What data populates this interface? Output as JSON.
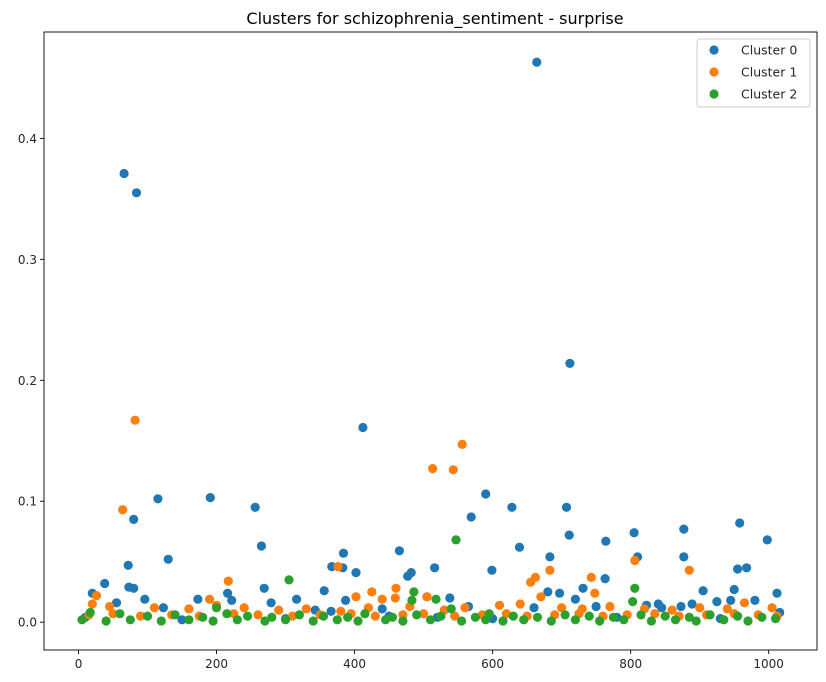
{
  "chart_data": {
    "type": "scatter",
    "title": "Clusters for schizophrenia_sentiment - surprise",
    "xlabel": "",
    "ylabel": "",
    "xlim": [
      -50,
      1070
    ],
    "ylim": [
      -0.023,
      0.488
    ],
    "xticks": [
      0,
      200,
      400,
      600,
      800,
      1000
    ],
    "yticks": [
      0.0,
      0.1,
      0.2,
      0.3,
      0.4
    ],
    "xtick_labels": [
      "0",
      "200",
      "400",
      "600",
      "800",
      "1000"
    ],
    "ytick_labels": [
      "0.0",
      "0.1",
      "0.2",
      "0.3",
      "0.4"
    ],
    "legend_position": "top-right",
    "grid": false,
    "series": [
      {
        "name": "Cluster 0",
        "color": "#1f77b4",
        "points": [
          [
            66,
            0.371
          ],
          [
            84,
            0.355
          ],
          [
            664,
            0.463
          ],
          [
            712,
            0.214
          ],
          [
            412,
            0.161
          ],
          [
            115,
            0.102
          ],
          [
            191,
            0.103
          ],
          [
            256,
            0.095
          ],
          [
            590,
            0.106
          ],
          [
            628,
            0.095
          ],
          [
            707,
            0.095
          ],
          [
            80,
            0.085
          ],
          [
            569,
            0.087
          ],
          [
            805,
            0.074
          ],
          [
            877,
            0.077
          ],
          [
            958,
            0.082
          ],
          [
            998,
            0.068
          ],
          [
            265,
            0.063
          ],
          [
            639,
            0.062
          ],
          [
            711,
            0.072
          ],
          [
            764,
            0.067
          ],
          [
            130,
            0.052
          ],
          [
            683,
            0.054
          ],
          [
            810,
            0.054
          ],
          [
            877,
            0.054
          ],
          [
            72,
            0.047
          ],
          [
            367,
            0.046
          ],
          [
            384,
            0.057
          ],
          [
            465,
            0.059
          ],
          [
            516,
            0.045
          ],
          [
            599,
            0.043
          ],
          [
            955,
            0.044
          ],
          [
            968,
            0.045
          ],
          [
            383,
            0.045
          ],
          [
            402,
            0.041
          ],
          [
            38,
            0.032
          ],
          [
            73,
            0.029
          ],
          [
            80,
            0.028
          ],
          [
            269,
            0.028
          ],
          [
            356,
            0.026
          ],
          [
            477,
            0.038
          ],
          [
            482,
            0.041
          ],
          [
            680,
            0.025
          ],
          [
            697,
            0.024
          ],
          [
            731,
            0.028
          ],
          [
            763,
            0.036
          ],
          [
            905,
            0.026
          ],
          [
            950,
            0.027
          ],
          [
            1012,
            0.024
          ],
          [
            20,
            0.024
          ],
          [
            55,
            0.016
          ],
          [
            96,
            0.019
          ],
          [
            173,
            0.019
          ],
          [
            216,
            0.024
          ],
          [
            222,
            0.018
          ],
          [
            279,
            0.016
          ],
          [
            316,
            0.019
          ],
          [
            387,
            0.018
          ],
          [
            505,
            0.021
          ],
          [
            538,
            0.02
          ],
          [
            720,
            0.019
          ],
          [
            823,
            0.014
          ],
          [
            840,
            0.015
          ],
          [
            889,
            0.015
          ],
          [
            925,
            0.017
          ],
          [
            945,
            0.018
          ],
          [
            980,
            0.018
          ],
          [
            123,
            0.012
          ],
          [
            343,
            0.01
          ],
          [
            366,
            0.009
          ],
          [
            440,
            0.011
          ],
          [
            565,
            0.013
          ],
          [
            660,
            0.012
          ],
          [
            750,
            0.013
          ],
          [
            845,
            0.012
          ],
          [
            873,
            0.013
          ],
          [
            1016,
            0.008
          ],
          [
            10,
            0.004
          ],
          [
            150,
            0.002
          ],
          [
            300,
            0.003
          ],
          [
            450,
            0.005
          ],
          [
            520,
            0.004
          ],
          [
            600,
            0.003
          ],
          [
            780,
            0.004
          ],
          [
            930,
            0.003
          ]
        ]
      },
      {
        "name": "Cluster 1",
        "color": "#ff7f0e",
        "points": [
          [
            82,
            0.167
          ],
          [
            556,
            0.147
          ],
          [
            513,
            0.127
          ],
          [
            543,
            0.126
          ],
          [
            64,
            0.093
          ],
          [
            806,
            0.051
          ],
          [
            885,
            0.043
          ],
          [
            683,
            0.043
          ],
          [
            376,
            0.046
          ],
          [
            402,
            0.021
          ],
          [
            217,
            0.034
          ],
          [
            655,
            0.033
          ],
          [
            662,
            0.037
          ],
          [
            743,
            0.037
          ],
          [
            748,
            0.024
          ],
          [
            460,
            0.028
          ],
          [
            505,
            0.021
          ],
          [
            425,
            0.025
          ],
          [
            440,
            0.019
          ],
          [
            459,
            0.02
          ],
          [
            670,
            0.021
          ],
          [
            26,
            0.022
          ],
          [
            190,
            0.019
          ],
          [
            20,
            0.015
          ],
          [
            45,
            0.013
          ],
          [
            110,
            0.012
          ],
          [
            160,
            0.011
          ],
          [
            200,
            0.014
          ],
          [
            240,
            0.012
          ],
          [
            290,
            0.01
          ],
          [
            330,
            0.011
          ],
          [
            380,
            0.009
          ],
          [
            420,
            0.012
          ],
          [
            480,
            0.013
          ],
          [
            530,
            0.01
          ],
          [
            560,
            0.012
          ],
          [
            610,
            0.014
          ],
          [
            640,
            0.015
          ],
          [
            700,
            0.012
          ],
          [
            730,
            0.011
          ],
          [
            770,
            0.013
          ],
          [
            820,
            0.011
          ],
          [
            860,
            0.01
          ],
          [
            900,
            0.012
          ],
          [
            940,
            0.011
          ],
          [
            965,
            0.016
          ],
          [
            1005,
            0.012
          ],
          [
            15,
            0.006
          ],
          [
            50,
            0.007
          ],
          [
            90,
            0.005
          ],
          [
            135,
            0.006
          ],
          [
            175,
            0.005
          ],
          [
            225,
            0.007
          ],
          [
            260,
            0.006
          ],
          [
            310,
            0.005
          ],
          [
            350,
            0.006
          ],
          [
            395,
            0.007
          ],
          [
            430,
            0.005
          ],
          [
            470,
            0.006
          ],
          [
            500,
            0.007
          ],
          [
            545,
            0.005
          ],
          [
            585,
            0.006
          ],
          [
            620,
            0.007
          ],
          [
            650,
            0.005
          ],
          [
            690,
            0.006
          ],
          [
            725,
            0.007
          ],
          [
            760,
            0.005
          ],
          [
            795,
            0.006
          ],
          [
            835,
            0.007
          ],
          [
            870,
            0.005
          ],
          [
            910,
            0.006
          ],
          [
            950,
            0.007
          ],
          [
            985,
            0.006
          ],
          [
            1012,
            0.005
          ]
        ]
      },
      {
        "name": "Cluster 2",
        "color": "#2ca02c",
        "points": [
          [
            547,
            0.068
          ],
          [
            305,
            0.035
          ],
          [
            806,
            0.028
          ],
          [
            486,
            0.025
          ],
          [
            518,
            0.019
          ],
          [
            483,
            0.018
          ],
          [
            803,
            0.017
          ],
          [
            200,
            0.012
          ],
          [
            540,
            0.011
          ],
          [
            17,
            0.008
          ],
          [
            60,
            0.007
          ],
          [
            100,
            0.005
          ],
          [
            140,
            0.006
          ],
          [
            180,
            0.004
          ],
          [
            215,
            0.007
          ],
          [
            245,
            0.005
          ],
          [
            280,
            0.004
          ],
          [
            320,
            0.006
          ],
          [
            355,
            0.005
          ],
          [
            390,
            0.004
          ],
          [
            415,
            0.007
          ],
          [
            455,
            0.004
          ],
          [
            490,
            0.006
          ],
          [
            525,
            0.005
          ],
          [
            575,
            0.004
          ],
          [
            595,
            0.007
          ],
          [
            630,
            0.005
          ],
          [
            665,
            0.004
          ],
          [
            705,
            0.006
          ],
          [
            740,
            0.005
          ],
          [
            775,
            0.004
          ],
          [
            815,
            0.006
          ],
          [
            850,
            0.005
          ],
          [
            885,
            0.004
          ],
          [
            915,
            0.006
          ],
          [
            955,
            0.005
          ],
          [
            990,
            0.004
          ],
          [
            1010,
            0.003
          ],
          [
            5,
            0.002
          ],
          [
            40,
            0.001
          ],
          [
            75,
            0.002
          ],
          [
            120,
            0.001
          ],
          [
            160,
            0.002
          ],
          [
            195,
            0.001
          ],
          [
            230,
            0.002
          ],
          [
            270,
            0.001
          ],
          [
            300,
            0.002
          ],
          [
            340,
            0.001
          ],
          [
            375,
            0.002
          ],
          [
            405,
            0.001
          ],
          [
            445,
            0.002
          ],
          [
            470,
            0.001
          ],
          [
            510,
            0.002
          ],
          [
            555,
            0.001
          ],
          [
            590,
            0.002
          ],
          [
            615,
            0.001
          ],
          [
            645,
            0.002
          ],
          [
            685,
            0.001
          ],
          [
            720,
            0.002
          ],
          [
            755,
            0.001
          ],
          [
            790,
            0.002
          ],
          [
            830,
            0.001
          ],
          [
            865,
            0.002
          ],
          [
            895,
            0.001
          ],
          [
            935,
            0.002
          ],
          [
            970,
            0.001
          ]
        ]
      }
    ]
  }
}
